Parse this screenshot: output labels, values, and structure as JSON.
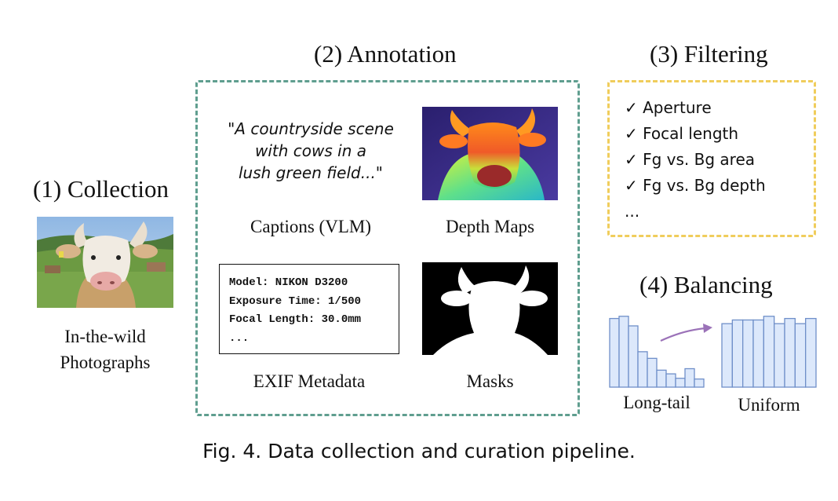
{
  "stages": {
    "collection": {
      "heading": "(1) Collection",
      "label_line1": "In-the-wild",
      "label_line2": "Photographs"
    },
    "annotation": {
      "heading": "(2) Annotation",
      "caption_lines": [
        "\"A countryside scene",
        "with cows in a",
        "lush green field...\""
      ],
      "captions_label": "Captions (VLM)",
      "depth_label": "Depth Maps",
      "exif_lines": [
        "Model: NIKON D3200",
        "Exposure Time: 1/500",
        "Focal Length: 30.0mm",
        "..."
      ],
      "exif_label": "EXIF Metadata",
      "masks_label": "Masks"
    },
    "filtering": {
      "heading": "(3) Filtering",
      "items": [
        "✓ Aperture",
        "✓ Focal length",
        "✓ Fg vs. Bg area",
        "✓ Fg vs. Bg depth",
        "..."
      ]
    },
    "balancing": {
      "heading": "(4) Balancing",
      "long_tail_label": "Long-tail",
      "uniform_label": "Uniform",
      "long_tail_bars": [
        0.93,
        0.96,
        0.83,
        0.48,
        0.39,
        0.23,
        0.18,
        0.12,
        0.25,
        0.11
      ],
      "uniform_bars": [
        0.86,
        0.91,
        0.91,
        0.91,
        0.96,
        0.86,
        0.93,
        0.86,
        0.93
      ]
    }
  },
  "figure_caption": "Fig. 4.  Data collection and curation pipeline.",
  "colors": {
    "annotation_border": "#5f9e8f",
    "filtering_border": "#f0cd5c",
    "bar_fill": "#dce8fb",
    "bar_stroke": "#6f8fc9",
    "arrow": "#9b72b8"
  }
}
